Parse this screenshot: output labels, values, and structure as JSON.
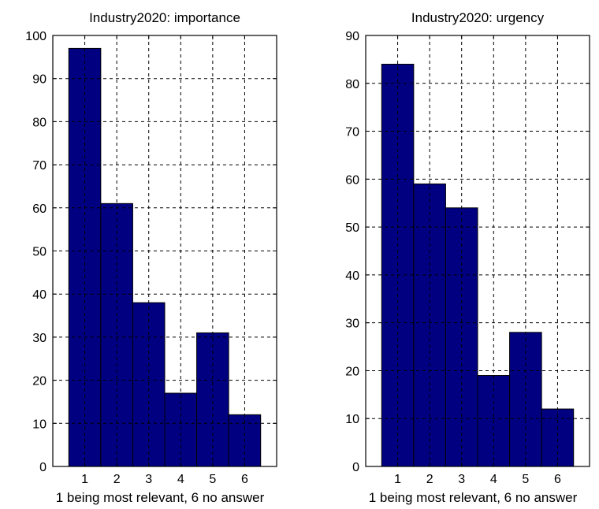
{
  "chart_data": [
    {
      "type": "bar",
      "title": "Industry2020: importance",
      "xlabel": "1 being most relevant, 6 no answer",
      "ylabel": "",
      "categories": [
        "1",
        "2",
        "3",
        "4",
        "5",
        "6"
      ],
      "values": [
        97,
        61,
        38,
        17,
        31,
        12
      ],
      "xlim": [
        0,
        7
      ],
      "ylim": [
        0,
        100
      ],
      "yticks": [
        0,
        10,
        20,
        30,
        40,
        50,
        60,
        70,
        80,
        90,
        100
      ],
      "grid": true,
      "bar_color": "#000080"
    },
    {
      "type": "bar",
      "title": "Industry2020: urgency",
      "xlabel": "1 being most relevant, 6 no answer",
      "ylabel": "",
      "categories": [
        "1",
        "2",
        "3",
        "4",
        "5",
        "6"
      ],
      "values": [
        84,
        59,
        54,
        19,
        28,
        12
      ],
      "xlim": [
        0,
        7
      ],
      "ylim": [
        0,
        90
      ],
      "yticks": [
        0,
        10,
        20,
        30,
        40,
        50,
        60,
        70,
        80,
        90
      ],
      "grid": true,
      "bar_color": "#000080"
    }
  ]
}
